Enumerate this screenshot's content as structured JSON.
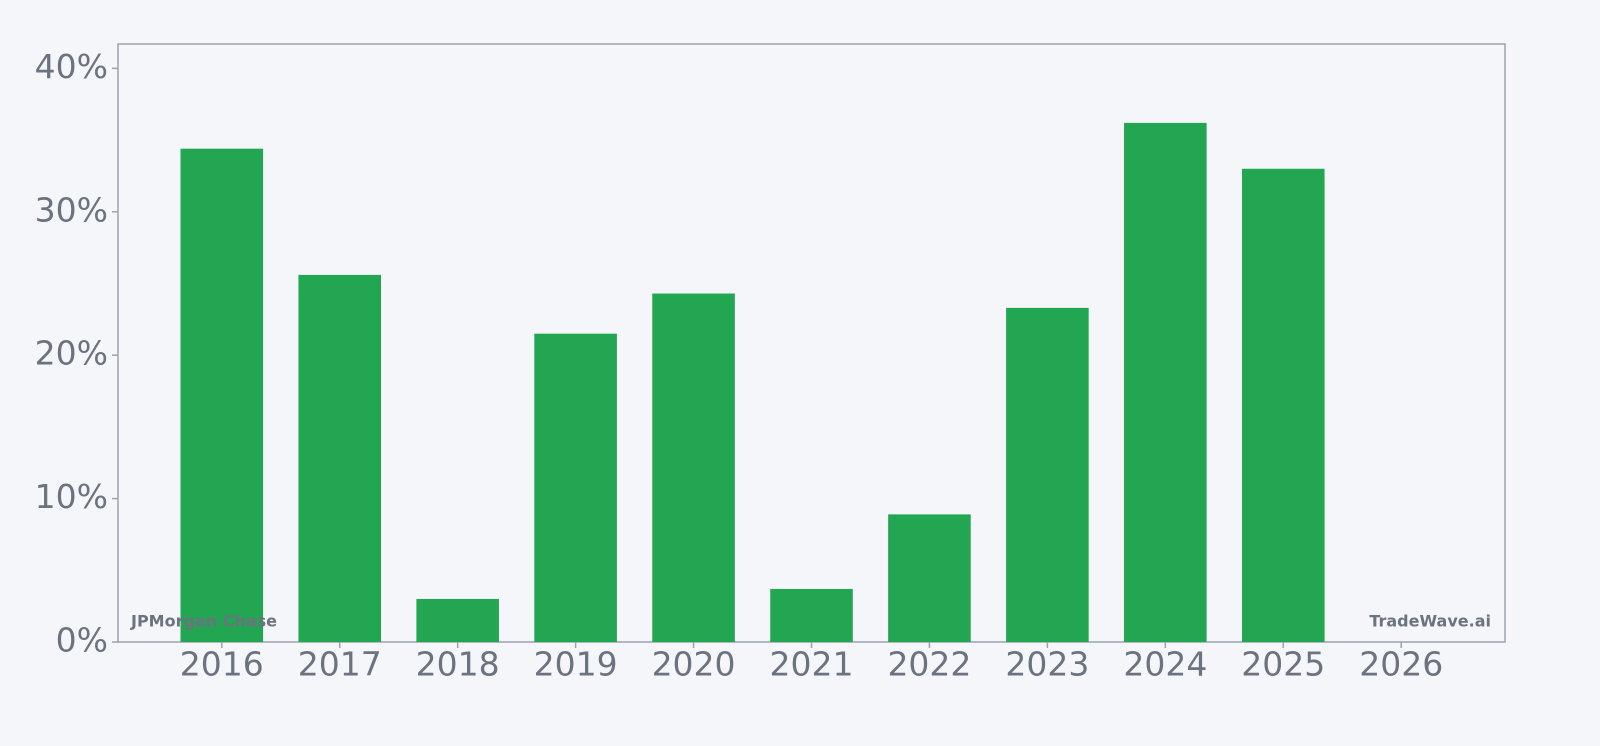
{
  "chart_data": {
    "type": "bar",
    "categories": [
      "2016",
      "2017",
      "2018",
      "2019",
      "2020",
      "2021",
      "2022",
      "2023",
      "2024",
      "2025",
      "2026"
    ],
    "values": [
      34.4,
      25.6,
      3.0,
      21.5,
      24.3,
      3.7,
      8.9,
      23.3,
      36.2,
      33.0,
      null
    ],
    "color": "#22a651",
    "ylim": [
      0,
      41.7
    ],
    "yticks": [
      {
        "value": 0,
        "label": "0%"
      },
      {
        "value": 10,
        "label": "10%"
      },
      {
        "value": 20,
        "label": "20%"
      },
      {
        "value": 30,
        "label": "30%"
      },
      {
        "value": 40,
        "label": "40%"
      }
    ],
    "grid": false,
    "annotations": [
      "JPMorgan Chase",
      "TradeWave.ai"
    ]
  }
}
